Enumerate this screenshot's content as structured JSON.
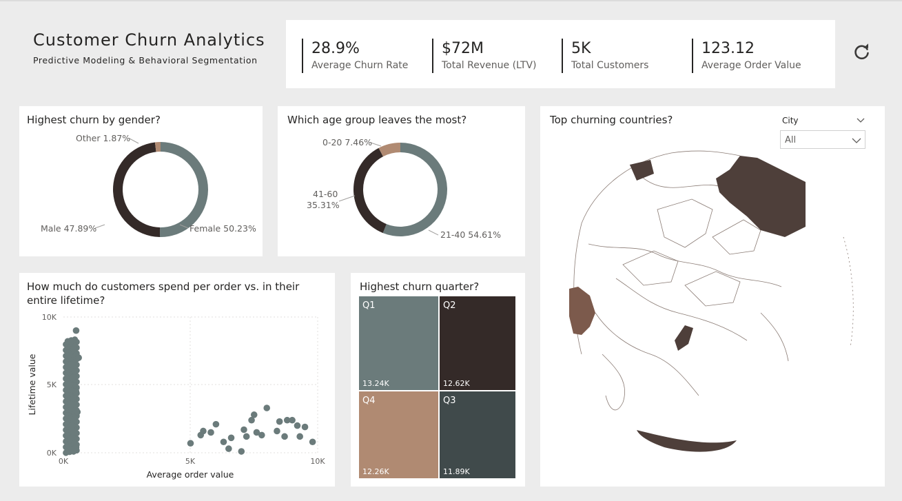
{
  "header": {
    "title": "Customer Churn Analytics",
    "subtitle": "Predictive Modeling & Behavioral Segmentation"
  },
  "kpis": [
    {
      "value": "28.9%",
      "label": "Average Churn Rate"
    },
    {
      "value": "$72M",
      "label": "Total Revenue (LTV)"
    },
    {
      "value": "5K",
      "label": "Total Customers"
    },
    {
      "value": "123.12",
      "label": "Average Order Value"
    }
  ],
  "icons": {
    "refresh": "refresh-icon",
    "dropdown": "chevron-down-icon"
  },
  "colors": {
    "gray": "#6b7b7b",
    "dark": "#342a28",
    "tan": "#b08a72",
    "slate": "#404a4b",
    "map_land": "#4e3f3a",
    "map_highlight": "#7c5a4c"
  },
  "gender_chart": {
    "title": "Highest churn by gender?",
    "slices": [
      {
        "name": "Female",
        "pct": 50.23,
        "label": "Female 50.23%",
        "color": "#6b7b7b"
      },
      {
        "name": "Male",
        "pct": 47.89,
        "label": "Male 47.89%",
        "color": "#342a28"
      },
      {
        "name": "Other",
        "pct": 1.87,
        "label": "Other 1.87%",
        "color": "#b08a72"
      }
    ]
  },
  "age_chart": {
    "title": "Which age group leaves the most?",
    "slices": [
      {
        "name": "21-40",
        "pct": 54.61,
        "label": "21-40 54.61%",
        "color": "#6b7b7b"
      },
      {
        "name": "41-60",
        "pct": 35.31,
        "label_line1": "41-60",
        "label_line2": "35.31%",
        "color": "#342a28"
      },
      {
        "name": "0-20",
        "pct": 7.46,
        "label": "0-20 7.46%",
        "color": "#b08a72"
      }
    ]
  },
  "scatter_chart": {
    "title_line1": "How much do customers spend per order vs. in their",
    "title_line2": "entire lifetime?",
    "xlabel": "Average order value",
    "ylabel": "Lifetime value",
    "xticks": [
      "0K",
      "5K",
      "10K"
    ],
    "yticks": [
      "10K",
      "5K",
      "0K"
    ]
  },
  "chart_data": {
    "type": "scatter",
    "xlabel": "Average order value",
    "ylabel": "Lifetime value",
    "xlim": [
      0,
      10000
    ],
    "ylim": [
      0,
      10000
    ],
    "grid": true,
    "x": [
      500,
      300,
      400,
      600,
      300,
      450,
      350,
      250,
      500,
      400,
      300,
      550,
      450,
      350,
      400,
      300,
      450,
      500,
      350,
      400,
      5000,
      5500,
      5800,
      5400,
      6300,
      6500,
      6600,
      7000,
      7200,
      7400,
      7500,
      7600,
      7800,
      8000,
      8500,
      8700,
      8800,
      9000,
      9200,
      9300,
      9500,
      9800,
      6000,
      7100,
      8400
    ],
    "y": [
      9000,
      8200,
      7600,
      7000,
      6500,
      6000,
      5500,
      5000,
      4500,
      4000,
      3500,
      3000,
      2500,
      2000,
      1500,
      1000,
      700,
      400,
      200,
      100,
      700,
      1600,
      1500,
      1300,
      800,
      300,
      1100,
      100,
      1200,
      2400,
      2800,
      1500,
      1300,
      3300,
      2300,
      1200,
      2400,
      2400,
      2000,
      1200,
      1900,
      800,
      2100,
      1700,
      1600
    ]
  },
  "quarter_chart": {
    "title": "Highest churn quarter?",
    "tiles": [
      {
        "label": "Q1",
        "value": "13.24K",
        "color": "#6b7b7b"
      },
      {
        "label": "Q2",
        "value": "12.62K",
        "color": "#342a28"
      },
      {
        "label": "Q4",
        "value": "12.26K",
        "color": "#b08a72"
      },
      {
        "label": "Q3",
        "value": "11.89K",
        "color": "#404a4b"
      }
    ]
  },
  "map": {
    "title": "Top churning countries?",
    "filter_label": "City",
    "filter_value": "All"
  }
}
